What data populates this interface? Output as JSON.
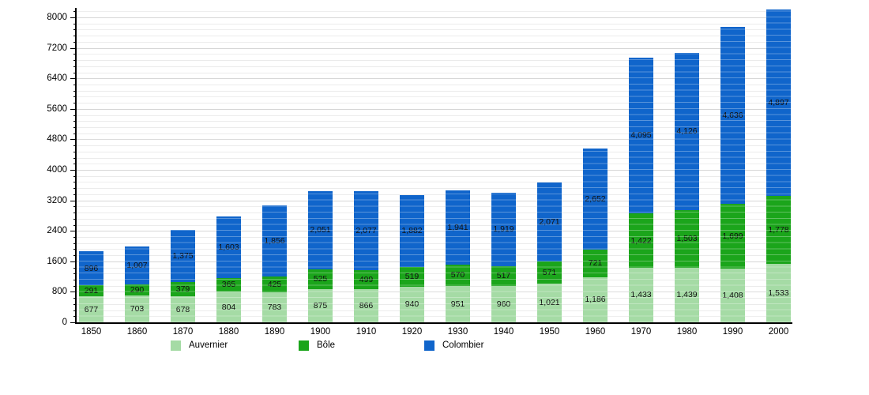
{
  "chart_data": {
    "type": "bar",
    "stacked": true,
    "title": "",
    "xlabel": "",
    "ylabel": "",
    "grid": "on",
    "legend_position": "bottom",
    "ylim": [
      0,
      8250
    ],
    "ytick_major_step": 800,
    "ytick_minor_step": 160,
    "ytick_labels": [
      "0",
      "800",
      "1600",
      "2400",
      "3200",
      "4000",
      "4800",
      "5600",
      "6400",
      "7200",
      "8000"
    ],
    "categories": [
      "1850",
      "1860",
      "1870",
      "1880",
      "1890",
      "1900",
      "1910",
      "1920",
      "1930",
      "1940",
      "1950",
      "1960",
      "1970",
      "1980",
      "1990",
      "2000"
    ],
    "series": [
      {
        "name": "Auvernier",
        "color": "#a5dba5",
        "values": [
          677,
          703,
          678,
          804,
          783,
          875,
          866,
          940,
          951,
          960,
          1021,
          1186,
          1433,
          1439,
          1408,
          1533
        ]
      },
      {
        "name": "Bôle",
        "color": "#1ba51b",
        "values": [
          291,
          290,
          379,
          365,
          425,
          525,
          499,
          519,
          570,
          517,
          571,
          721,
          1422,
          1503,
          1699,
          1778
        ]
      },
      {
        "name": "Colombier",
        "color": "#1065cb",
        "values": [
          896,
          1007,
          1375,
          1603,
          1856,
          2051,
          2077,
          1882,
          1941,
          1919,
          2071,
          2652,
          4095,
          4126,
          4636,
          4897
        ]
      }
    ]
  },
  "legend": {
    "items": [
      {
        "label": "Auvernier"
      },
      {
        "label": "Bôle"
      },
      {
        "label": "Colombier"
      }
    ]
  }
}
